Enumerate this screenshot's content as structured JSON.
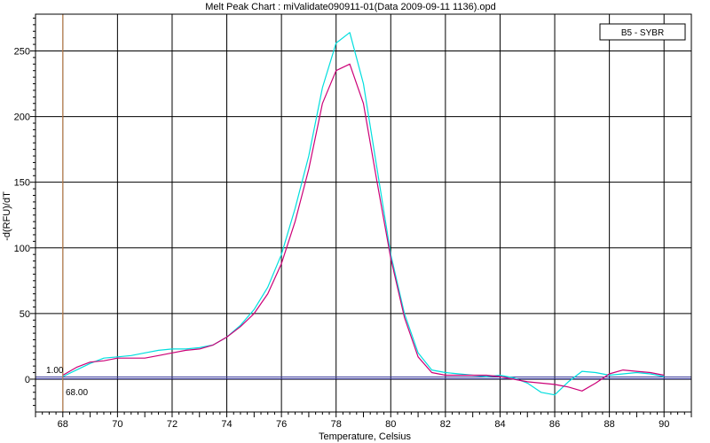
{
  "chart_data": {
    "type": "line",
    "title": "Melt Peak Chart : miValidate090911-01(Data 2009-09-11 1136).opd",
    "xlabel": "Temperature, Celsius",
    "ylabel": "-d(RFU)/dT",
    "xlim": [
      67.0,
      91.0
    ],
    "ylim": [
      -25,
      278
    ],
    "xticks": [
      68,
      70,
      72,
      74,
      76,
      78,
      80,
      82,
      84,
      86,
      88,
      90
    ],
    "yticks": [
      0,
      50,
      100,
      150,
      200,
      250
    ],
    "grid": true,
    "legend": {
      "entries": [
        "B5 - SYBR"
      ],
      "position": "top-right"
    },
    "threshold": {
      "value": 1.0,
      "label": "1.00"
    },
    "marker": {
      "x": 68.0,
      "label": "68.00"
    },
    "series": [
      {
        "color": "#00dede",
        "x": [
          68.0,
          68.5,
          69.0,
          69.5,
          70.0,
          70.5,
          71.0,
          71.5,
          72.0,
          72.5,
          73.0,
          73.5,
          74.0,
          74.5,
          75.0,
          75.5,
          76.0,
          76.5,
          77.0,
          77.5,
          78.0,
          78.5,
          79.0,
          79.5,
          80.0,
          80.5,
          81.0,
          81.5,
          82.0,
          82.5,
          83.0,
          83.5,
          84.0,
          84.5,
          85.0,
          85.5,
          86.0,
          86.5,
          87.0,
          87.5,
          88.0,
          88.5,
          89.0,
          89.5,
          90.0
        ],
        "y": [
          2,
          7,
          12,
          16,
          17,
          18,
          20,
          22,
          23,
          23,
          24,
          26,
          32,
          41,
          53,
          70,
          95,
          130,
          170,
          222,
          256,
          264,
          225,
          160,
          95,
          50,
          20,
          7,
          5,
          4,
          3,
          2,
          3,
          1,
          -3,
          -10,
          -12,
          -2,
          6,
          5,
          3,
          4,
          5,
          4,
          2
        ]
      },
      {
        "color": "#cc0077",
        "x": [
          68.0,
          68.5,
          69.0,
          69.5,
          70.0,
          70.5,
          71.0,
          71.5,
          72.0,
          72.5,
          73.0,
          73.5,
          74.0,
          74.5,
          75.0,
          75.5,
          76.0,
          76.5,
          77.0,
          77.5,
          78.0,
          78.5,
          79.0,
          79.5,
          80.0,
          80.5,
          81.0,
          81.5,
          82.0,
          82.5,
          83.0,
          83.5,
          84.0,
          84.5,
          85.0,
          85.5,
          86.0,
          86.5,
          87.0,
          87.5,
          88.0,
          88.5,
          89.0,
          89.5,
          90.0
        ],
        "y": [
          3,
          9,
          13,
          14,
          16,
          16,
          16,
          18,
          20,
          22,
          23,
          26,
          32,
          40,
          50,
          65,
          88,
          120,
          160,
          210,
          235,
          240,
          210,
          150,
          92,
          47,
          17,
          5,
          3,
          3,
          3,
          3,
          2,
          0,
          -2,
          -3,
          -4,
          -6,
          -9,
          -3,
          4,
          7,
          6,
          5,
          3
        ]
      }
    ]
  }
}
